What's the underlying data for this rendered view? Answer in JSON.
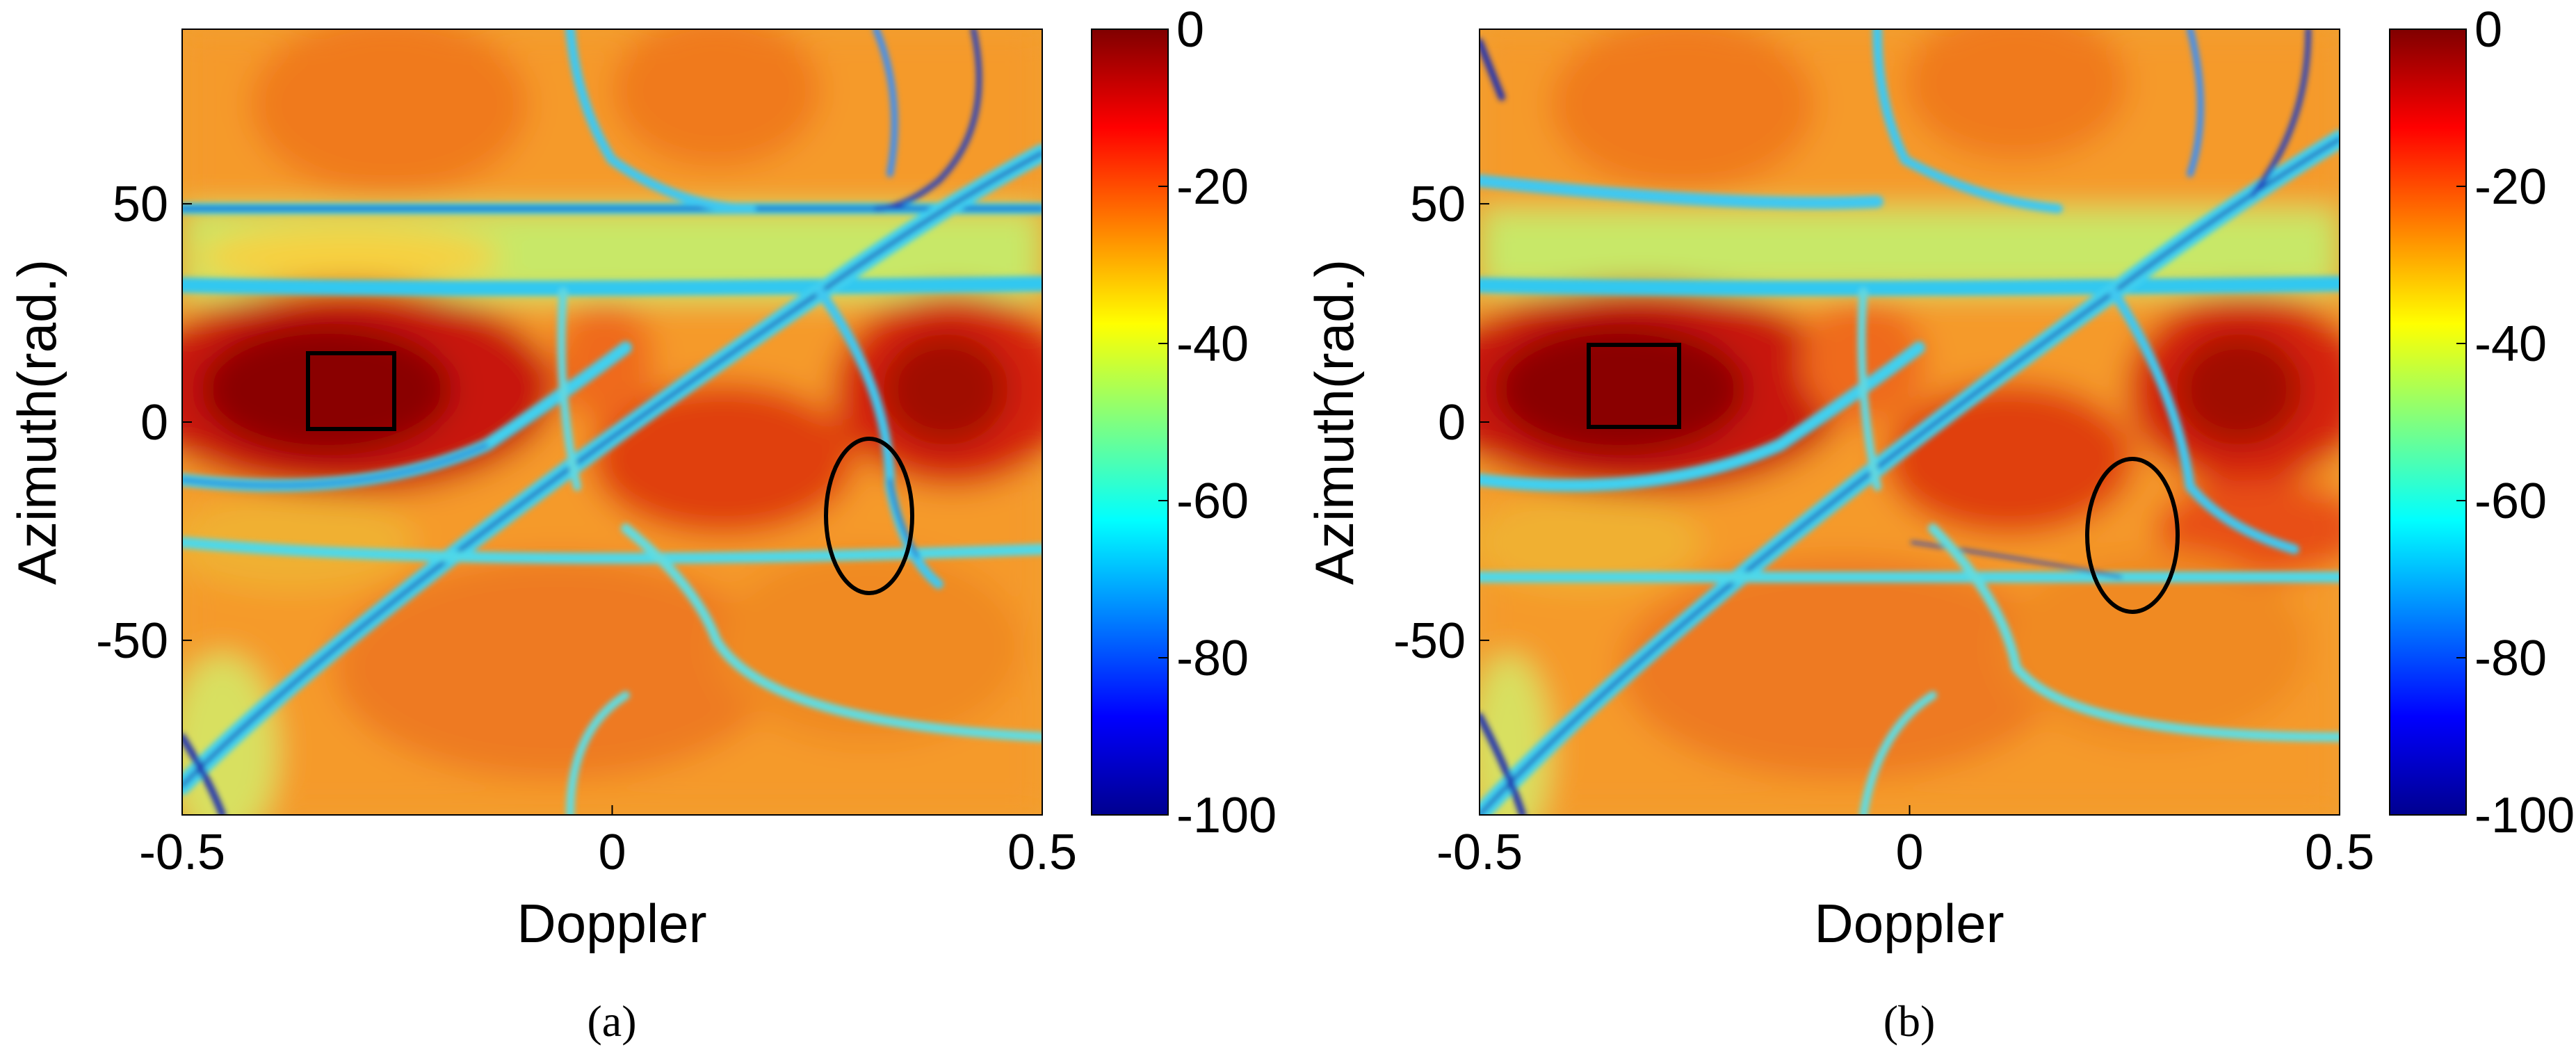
{
  "chart_data": [
    {
      "type": "heatmap",
      "panel_label": "(a)",
      "xlabel": "Doppler",
      "ylabel": "Azimuth(rad.)",
      "xlim": [
        -0.5,
        0.5
      ],
      "ylim": [
        -90,
        90
      ],
      "xticks": [
        -0.5,
        0,
        0.5
      ],
      "xtick_labels": [
        "-0.5",
        "0",
        "0.5"
      ],
      "yticks": [
        50,
        0,
        -50
      ],
      "ytick_labels": [
        "50",
        "0",
        "-50"
      ],
      "colorbar": {
        "range": [
          -100,
          0
        ],
        "ticks": [
          0,
          -20,
          -40,
          -60,
          -80,
          -100
        ],
        "tick_labels": [
          "0",
          "-20",
          "-40",
          "-60",
          "-80",
          "-100"
        ],
        "colormap": "jet"
      },
      "annotations": [
        {
          "shape": "rectangle",
          "x_range": [
            -0.35,
            -0.25
          ],
          "y_range": [
            0,
            17
          ]
        },
        {
          "shape": "ellipse",
          "center": [
            0.3,
            -22
          ],
          "x_radius": 0.05,
          "y_radius": 22
        }
      ]
    },
    {
      "type": "heatmap",
      "panel_label": "(b)",
      "xlabel": "Doppler",
      "ylabel": "Azimuth(rad.)",
      "xlim": [
        -0.5,
        0.5
      ],
      "ylim": [
        -90,
        90
      ],
      "xticks": [
        -0.5,
        0,
        0.5
      ],
      "xtick_labels": [
        "-0.5",
        "0",
        "0.5"
      ],
      "yticks": [
        50,
        0,
        -50
      ],
      "ytick_labels": [
        "50",
        "0",
        "-50"
      ],
      "colorbar": {
        "range": [
          -100,
          0
        ],
        "ticks": [
          0,
          -20,
          -40,
          -60,
          -80,
          -100
        ],
        "tick_labels": [
          "0",
          "-20",
          "-40",
          "-60",
          "-80",
          "-100"
        ],
        "colormap": "jet"
      },
      "annotations": [
        {
          "shape": "rectangle",
          "x_range": [
            -0.36,
            -0.26
          ],
          "y_range": [
            0,
            17
          ]
        },
        {
          "shape": "ellipse",
          "center": [
            0.26,
            -25
          ],
          "x_radius": 0.05,
          "y_radius": 22
        }
      ]
    }
  ]
}
